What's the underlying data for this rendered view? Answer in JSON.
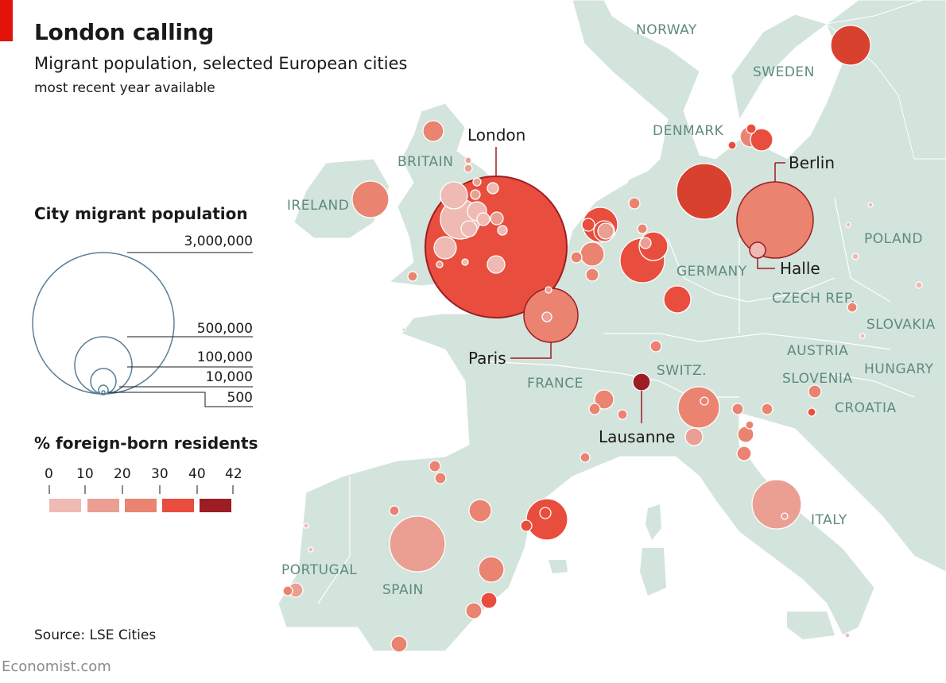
{
  "header": {
    "title": "London calling",
    "subtitle": "Migrant population, selected European cities",
    "note": "most recent year available"
  },
  "legend_size": {
    "heading": "City migrant population",
    "items": [
      {
        "label": "3,000,000",
        "value": 3000000
      },
      {
        "label": "500,000",
        "value": 500000
      },
      {
        "label": "100,000",
        "value": 100000
      },
      {
        "label": "10,000",
        "value": 10000
      },
      {
        "label": "500",
        "value": 500
      }
    ]
  },
  "legend_color": {
    "heading": "% foreign-born residents",
    "ticks": [
      "0",
      "10",
      "20",
      "30",
      "40",
      "42"
    ],
    "bins": [
      {
        "range": "0-10",
        "color": "#eebab3"
      },
      {
        "range": "10-20",
        "color": "#eb9f93"
      },
      {
        "range": "20-30",
        "color": "#ea8370"
      },
      {
        "range": "30-40",
        "color": "#e84d3d"
      },
      {
        "range": "40-42",
        "color": "#9c1d24"
      }
    ]
  },
  "countries": [
    "NORWAY",
    "SWEDEN",
    "DENMARK",
    "BRITAIN",
    "IRELAND",
    "POLAND",
    "GERMANY",
    "CZECH REP.",
    "SLOVAKIA",
    "AUSTRIA",
    "HUNGARY",
    "SLOVENIA",
    "CROATIA",
    "SWITZ.",
    "FRANCE",
    "ITALY",
    "PORTUGAL",
    "SPAIN"
  ],
  "labeled_cities": [
    "London",
    "Berlin",
    "Halle",
    "Paris",
    "Lausanne"
  ],
  "source": "Source: LSE Cities",
  "brand": "Economist.com",
  "colors": {
    "accent": "#e3120b",
    "land": "#d3e4dc",
    "country_label": "#5f8a80",
    "legend_circle": "#5b7f95"
  }
}
